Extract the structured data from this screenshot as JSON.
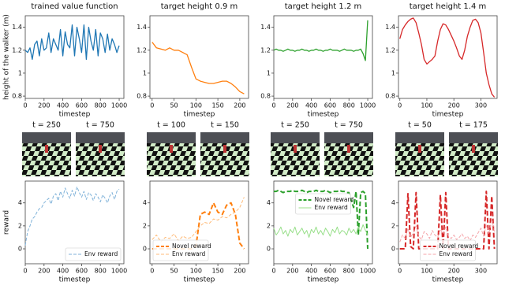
{
  "chart_data": [
    {
      "type": "line",
      "title": "trained value function",
      "ylabel": "height of the walker (m)",
      "xlabel": "timestep",
      "x": [
        0,
        25,
        50,
        75,
        100,
        125,
        150,
        175,
        200,
        225,
        250,
        275,
        300,
        325,
        350,
        375,
        400,
        425,
        450,
        475,
        500,
        525,
        550,
        575,
        600,
        625,
        650,
        675,
        700,
        725,
        750,
        775,
        800,
        825,
        850,
        875,
        900,
        925,
        950,
        975,
        1000
      ],
      "values": [
        1.2,
        1.18,
        1.22,
        1.12,
        1.25,
        1.28,
        1.15,
        1.3,
        1.2,
        1.22,
        1.35,
        1.18,
        1.3,
        1.25,
        1.2,
        1.38,
        1.15,
        1.36,
        1.25,
        1.22,
        1.42,
        1.15,
        1.4,
        1.3,
        1.18,
        1.42,
        1.12,
        1.4,
        1.28,
        1.2,
        1.38,
        1.15,
        1.35,
        1.3,
        1.18,
        1.34,
        1.2,
        1.3,
        1.25,
        1.18,
        1.24
      ],
      "color": "#1f77b4",
      "xlim": [
        0,
        1050
      ],
      "xticks": [
        0,
        200,
        400,
        600,
        800,
        1000
      ],
      "ylim": [
        0.78,
        1.5
      ],
      "yticks": [
        0.8,
        1.0,
        1.2,
        1.4
      ]
    },
    {
      "type": "line",
      "title": "target height 0.9 m",
      "xlabel": "timestep",
      "x": [
        0,
        10,
        20,
        30,
        40,
        50,
        60,
        70,
        80,
        90,
        100,
        110,
        120,
        130,
        140,
        150,
        160,
        170,
        180,
        190,
        200,
        210
      ],
      "values": [
        1.27,
        1.22,
        1.21,
        1.2,
        1.22,
        1.2,
        1.2,
        1.18,
        1.16,
        1.05,
        0.95,
        0.93,
        0.92,
        0.91,
        0.91,
        0.92,
        0.93,
        0.93,
        0.91,
        0.88,
        0.84,
        0.82
      ],
      "color": "#ff7f0e",
      "xlim": [
        -5,
        220
      ],
      "xticks": [
        0,
        50,
        100,
        150,
        200
      ],
      "ylim": [
        0.78,
        1.5
      ],
      "yticks": [
        0.8,
        1.0,
        1.2,
        1.4
      ]
    },
    {
      "type": "line",
      "title": "target height 1.2 m",
      "xlabel": "timestep",
      "x": [
        0,
        25,
        50,
        75,
        100,
        125,
        150,
        175,
        200,
        225,
        250,
        275,
        300,
        325,
        350,
        375,
        400,
        425,
        450,
        475,
        500,
        525,
        550,
        575,
        600,
        625,
        650,
        675,
        700,
        725,
        750,
        775,
        800,
        825,
        850,
        875,
        900,
        925,
        950,
        975,
        1000
      ],
      "values": [
        1.2,
        1.21,
        1.2,
        1.2,
        1.19,
        1.2,
        1.21,
        1.2,
        1.2,
        1.19,
        1.2,
        1.2,
        1.21,
        1.2,
        1.2,
        1.19,
        1.2,
        1.2,
        1.21,
        1.2,
        1.2,
        1.19,
        1.2,
        1.2,
        1.21,
        1.2,
        1.2,
        1.2,
        1.19,
        1.2,
        1.21,
        1.2,
        1.2,
        1.2,
        1.19,
        1.2,
        1.2,
        1.21,
        1.17,
        1.11,
        1.46
      ],
      "color": "#2ca02c",
      "xlim": [
        0,
        1050
      ],
      "xticks": [
        0,
        200,
        400,
        600,
        800,
        1000
      ],
      "ylim": [
        0.78,
        1.5
      ],
      "yticks": [
        0.8,
        1.0,
        1.2,
        1.4
      ]
    },
    {
      "type": "line",
      "title": "target height 1.4 m",
      "xlabel": "timestep",
      "x": [
        0,
        10,
        20,
        30,
        40,
        50,
        60,
        70,
        80,
        90,
        100,
        110,
        120,
        130,
        140,
        150,
        160,
        170,
        180,
        190,
        200,
        210,
        220,
        230,
        240,
        250,
        260,
        270,
        280,
        290,
        300,
        310,
        320,
        330,
        340,
        350
      ],
      "values": [
        1.3,
        1.38,
        1.42,
        1.45,
        1.47,
        1.48,
        1.44,
        1.35,
        1.25,
        1.12,
        1.08,
        1.1,
        1.12,
        1.15,
        1.28,
        1.38,
        1.43,
        1.42,
        1.38,
        1.33,
        1.28,
        1.22,
        1.15,
        1.12,
        1.2,
        1.32,
        1.4,
        1.46,
        1.47,
        1.44,
        1.35,
        1.18,
        1.0,
        0.9,
        0.82,
        0.79
      ],
      "color": "#d62728",
      "xlim": [
        -5,
        360
      ],
      "xticks": [
        0,
        100,
        200,
        300
      ],
      "ylim": [
        0.78,
        1.5
      ],
      "yticks": [
        0.8,
        1.0,
        1.2,
        1.4
      ]
    },
    {
      "type": "line",
      "ylabel": "reward",
      "xlabel": "timestep",
      "legend": "lower right",
      "x": [
        0,
        25,
        50,
        75,
        100,
        125,
        150,
        175,
        200,
        225,
        250,
        275,
        300,
        325,
        350,
        375,
        400,
        425,
        450,
        475,
        500,
        525,
        550,
        575,
        600,
        625,
        650,
        675,
        700,
        725,
        750,
        775,
        800,
        825,
        850,
        875,
        900,
        925,
        950,
        975,
        1000
      ],
      "series": [
        {
          "name": "Env reward",
          "color": "#7fb2d9",
          "dash": true,
          "linewidth": 1,
          "values": [
            0.3,
            1.5,
            2,
            2.6,
            2.8,
            3.2,
            3.5,
            3.6,
            4.0,
            4.2,
            4.4,
            3.9,
            4.6,
            4.8,
            4.2,
            5.0,
            4.5,
            5.3,
            4.8,
            4.4,
            5.1,
            4.6,
            5.4,
            4.9,
            4.5,
            5.0,
            4.3,
            4.9,
            4.7,
            4.2,
            4.8,
            4.5,
            4.1,
            4.7,
            4.4,
            4.0,
            4.6,
            4.9,
            4.3,
            5.0,
            5.2
          ]
        }
      ],
      "xlim": [
        0,
        1050
      ],
      "xticks": [
        0,
        200,
        400,
        600,
        800,
        1000
      ],
      "ylim": [
        -1.3,
        5.9
      ],
      "yticks": [
        0,
        2,
        4
      ]
    },
    {
      "type": "line",
      "xlabel": "timestep",
      "legend": "lower left",
      "x": [
        0,
        10,
        20,
        30,
        40,
        50,
        60,
        70,
        80,
        90,
        100,
        110,
        120,
        130,
        140,
        150,
        160,
        170,
        180,
        190,
        200,
        210
      ],
      "series": [
        {
          "name": "Novel reward",
          "color": "#ff7f0e",
          "dash": true,
          "linewidth": 2,
          "values": [
            0,
            0,
            0,
            0,
            0,
            0,
            0,
            0,
            0,
            0,
            0.2,
            3.0,
            3.2,
            3.0,
            4.0,
            3.2,
            3.0,
            3.8,
            4.0,
            3.0,
            0.5,
            0
          ]
        },
        {
          "name": "Env reward",
          "color": "#ffbb78",
          "dash": true,
          "linewidth": 1,
          "values": [
            0.8,
            1.2,
            0.6,
            1.0,
            0.9,
            1.3,
            0.7,
            1.1,
            0.9,
            1.0,
            1.5,
            2.0,
            2.3,
            2.2,
            2.6,
            2.5,
            2.8,
            2.7,
            3.0,
            3.2,
            3.6,
            4.5
          ]
        }
      ],
      "xlim": [
        -5,
        220
      ],
      "xticks": [
        0,
        50,
        100,
        150,
        200
      ],
      "ylim": [
        -1.3,
        5.9
      ],
      "yticks": [
        0,
        2,
        4
      ]
    },
    {
      "type": "line",
      "xlabel": "timestep",
      "legend": "upper center",
      "x": [
        0,
        25,
        50,
        75,
        100,
        125,
        150,
        175,
        200,
        225,
        250,
        275,
        300,
        325,
        350,
        375,
        400,
        425,
        450,
        475,
        500,
        525,
        550,
        575,
        600,
        625,
        650,
        675,
        700,
        725,
        750,
        775,
        800,
        825,
        850,
        875,
        900,
        925,
        950,
        975,
        1000
      ],
      "series": [
        {
          "name": "Novel reward",
          "color": "#2ca02c",
          "dash": true,
          "linewidth": 2,
          "values": [
            5.0,
            5.0,
            5.1,
            5.0,
            4.9,
            5.0,
            5.0,
            5.0,
            5.1,
            5.0,
            5.0,
            5.0,
            5.1,
            5.0,
            4.9,
            5.0,
            5.0,
            5.0,
            5.1,
            5.0,
            5.0,
            5.0,
            5.1,
            5.0,
            4.9,
            5.0,
            5.0,
            5.0,
            5.1,
            5.0,
            5.0,
            4.9,
            4.9,
            4.2,
            3.6,
            5.0,
            1.2,
            4.9,
            5.0,
            4.8,
            0
          ]
        },
        {
          "name": "Env reward",
          "color": "#98df8a",
          "dash": false,
          "linewidth": 1,
          "values": [
            1.8,
            1.2,
            1.5,
            1.9,
            1.3,
            1.6,
            1.1,
            1.7,
            1.4,
            1.9,
            1.2,
            1.5,
            1.8,
            1.3,
            1.6,
            1.0,
            1.7,
            1.4,
            1.9,
            1.3,
            1.6,
            1.2,
            1.8,
            1.5,
            1.1,
            1.7,
            1.4,
            1.9,
            1.3,
            1.6,
            1.5,
            1.2,
            1.8,
            1.4,
            1.7,
            1.3,
            1.9,
            1.5,
            2.1,
            1.6,
            1.2
          ]
        }
      ],
      "xlim": [
        0,
        1050
      ],
      "xticks": [
        0,
        200,
        400,
        600,
        800,
        1000
      ],
      "ylim": [
        -1.3,
        5.9
      ],
      "yticks": [
        0,
        2,
        4
      ]
    },
    {
      "type": "line",
      "xlabel": "timestep",
      "legend": "lower center",
      "x": [
        0,
        10,
        20,
        30,
        40,
        50,
        60,
        70,
        80,
        90,
        100,
        110,
        120,
        130,
        140,
        150,
        160,
        170,
        180,
        190,
        200,
        210,
        220,
        230,
        240,
        250,
        260,
        270,
        280,
        290,
        300,
        310,
        320,
        330,
        340,
        350
      ],
      "series": [
        {
          "name": "Novel reward",
          "color": "#d62728",
          "dash": true,
          "linewidth": 2,
          "values": [
            0,
            0,
            0,
            4.8,
            0.2,
            0,
            4.9,
            0,
            0,
            0,
            0,
            0,
            0,
            0,
            0,
            4.7,
            0,
            4.9,
            0,
            0,
            0,
            0,
            0,
            0,
            0,
            0,
            0,
            0,
            0,
            0,
            0,
            0,
            5.0,
            0,
            4.6,
            0
          ]
        },
        {
          "name": "Env reward",
          "color": "#f4a3a8",
          "dash": true,
          "linewidth": 1,
          "values": [
            0.6,
            1.2,
            0.9,
            1.8,
            1.0,
            1.4,
            2.0,
            1.1,
            0.8,
            1.5,
            1.3,
            0.9,
            1.6,
            1.2,
            1.0,
            1.7,
            1.3,
            1.9,
            1.1,
            0.9,
            1.2,
            0.8,
            1.0,
            1.3,
            0.9,
            1.1,
            0.7,
            1.2,
            1.0,
            1.4,
            1.8,
            1.1,
            2.1,
            1.3,
            2.6,
            1.5
          ]
        }
      ],
      "xlim": [
        -5,
        360
      ],
      "xticks": [
        0,
        100,
        200,
        300
      ],
      "ylim": [
        -1.3,
        5.9
      ],
      "yticks": [
        0,
        2,
        4
      ]
    }
  ],
  "snapshots": [
    "t = 250",
    "t = 750",
    "t = 100",
    "t = 150",
    "t = 250",
    "t = 750",
    "t = 50",
    "t = 175"
  ]
}
